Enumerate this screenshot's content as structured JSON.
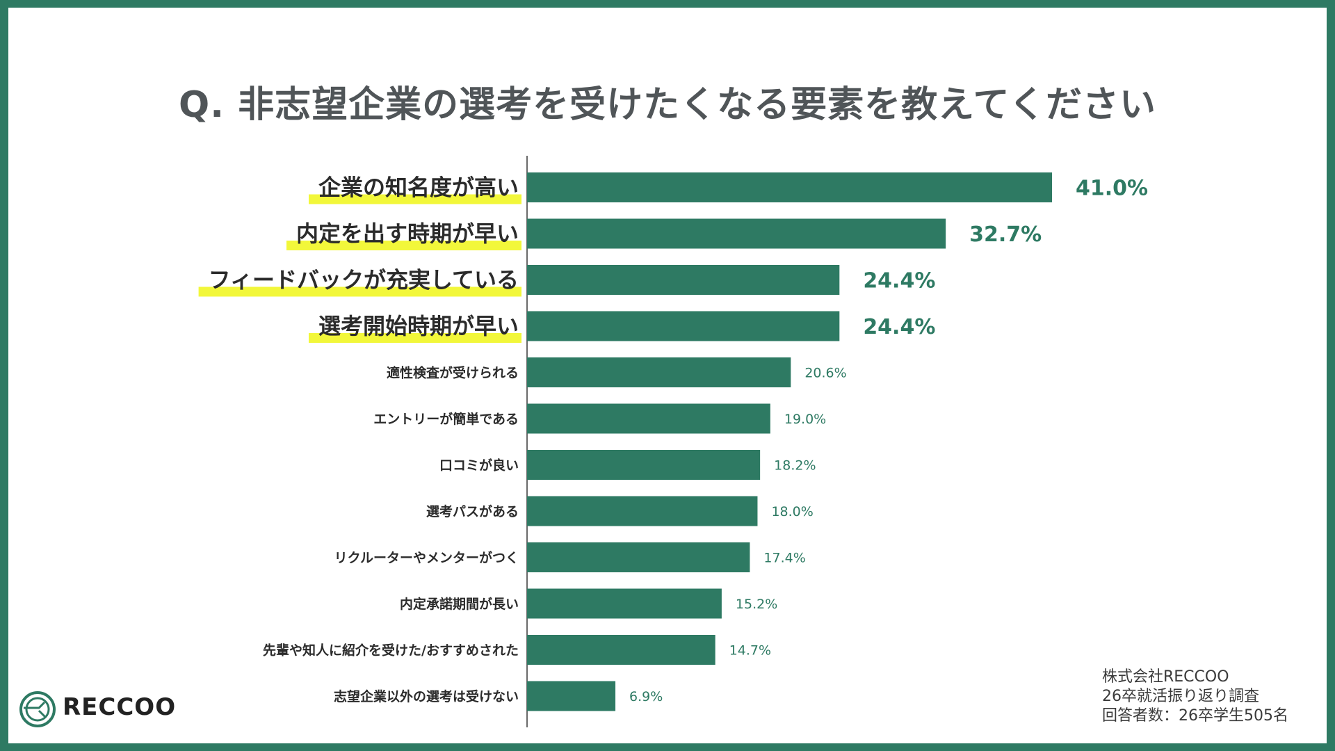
{
  "title": "Q. 非志望企業の選考を受けたくなる要素を教えてください",
  "logo": {
    "name": "RECCOO",
    "icon": "reccoo-logo-icon"
  },
  "source": {
    "line1": "株式会社RECCOO",
    "line2": "26卒就活振り返り調査",
    "line3": "回答者数：26卒学生505名"
  },
  "colors": {
    "bar": "#2e7a63",
    "highlight": "#f2f73a",
    "border": "#2e7a63",
    "label": "#2b2b2b",
    "value": "#2e7a63"
  },
  "chart_data": {
    "type": "bar",
    "orientation": "horizontal",
    "title": "Q. 非志望企業の選考を受けたくなる要素を教えてください",
    "categories": [
      "企業の知名度が高い",
      "内定を出す時期が早い",
      "フィードバックが充実している",
      "選考開始時期が早い",
      "適性検査が受けられる",
      "エントリーが簡単である",
      "口コミが良い",
      "選考パスがある",
      "リクルーターやメンターがつく",
      "内定承諾期間が長い",
      "先輩や知人に紹介を受けた/おすすめされた",
      "志望企業以外の選考は受けない"
    ],
    "values": [
      41.0,
      32.7,
      24.4,
      24.4,
      20.6,
      19.0,
      18.2,
      18.0,
      17.4,
      15.2,
      14.7,
      6.9
    ],
    "value_labels": [
      "41.0%",
      "32.7%",
      "24.4%",
      "24.4%",
      "20.6%",
      "19.0%",
      "18.2%",
      "18.0%",
      "17.4%",
      "15.2%",
      "14.7%",
      "6.9%"
    ],
    "highlighted_count": 4,
    "unit": "%",
    "xlim": [
      0,
      41.0
    ],
    "grid": false,
    "legend": "none"
  }
}
